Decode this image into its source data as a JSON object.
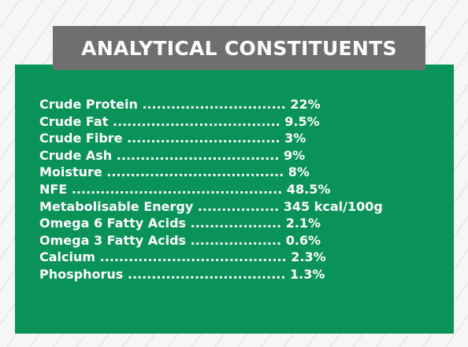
{
  "title": "ANALYTICAL CONSTITUENTS",
  "colors": {
    "panel": "#0a9359",
    "title_bar": "#6e6f6e",
    "text": "#ffffff"
  },
  "constituents": [
    {
      "label": "Crude Protein",
      "dots": "..............................",
      "value": "22%"
    },
    {
      "label": "Crude Fat",
      "dots": "...................................",
      "value": "9.5%"
    },
    {
      "label": "Crude Fibre",
      "dots": "................................",
      "value": "3%"
    },
    {
      "label": "Crude Ash",
      "dots": "..................................",
      "value": "9%"
    },
    {
      "label": "Moisture",
      "dots": ".....................................",
      "value": "8%"
    },
    {
      "label": "NFE",
      "dots": "............................................",
      "value": "48.5%"
    },
    {
      "label": "Metabolisable Energy",
      "dots": ".................",
      "value": "345 kcal/100g"
    },
    {
      "label": "Omega 6 Fatty Acids",
      "dots": "...................",
      "value": "2.1%"
    },
    {
      "label": "Omega 3 Fatty Acids",
      "dots": "...................",
      "value": "0.6%"
    },
    {
      "label": "Calcium",
      "dots": ".......................................",
      "value": "2.3%"
    },
    {
      "label": "Phosphorus",
      "dots": ".................................",
      "value": "1.3%"
    }
  ]
}
